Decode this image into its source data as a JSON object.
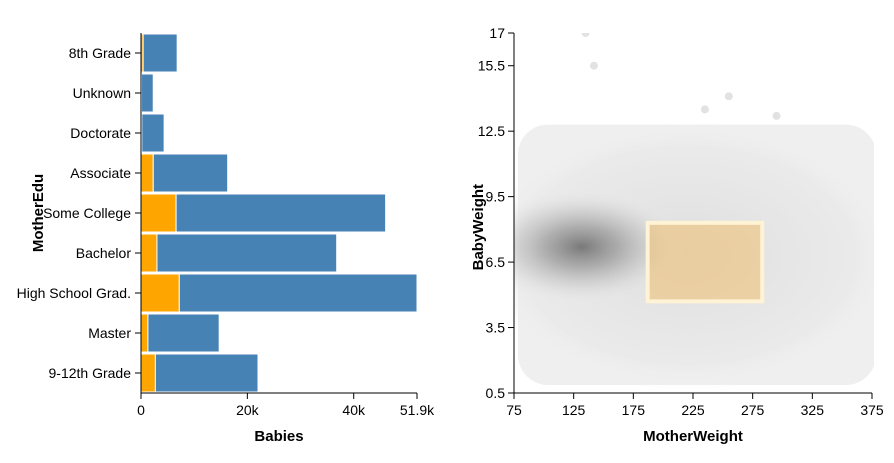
{
  "chart_data": [
    {
      "type": "bar",
      "orientation": "horizontal",
      "stacked": true,
      "xlabel": "Babies",
      "ylabel": "MotherEdu",
      "xlim": [
        0,
        51900
      ],
      "xticks": [
        {
          "value": 0,
          "label": "0"
        },
        {
          "value": 20000,
          "label": "20k"
        },
        {
          "value": 40000,
          "label": "40k"
        },
        {
          "value": 51900,
          "label": "51.9k"
        }
      ],
      "categories": [
        "8th Grade",
        "Unknown",
        "Doctorate",
        "Associate",
        "Some College",
        "Bachelor",
        "High School Grad.",
        "Master",
        "9-12th Grade"
      ],
      "series": [
        {
          "color": "#ffa500",
          "values": [
            400,
            100,
            150,
            2300,
            6600,
            3000,
            7200,
            1300,
            2700
          ]
        },
        {
          "color": "#4682b4",
          "values": [
            6400,
            2200,
            4200,
            14000,
            39400,
            33800,
            44700,
            13400,
            19300
          ]
        }
      ],
      "grid": false
    },
    {
      "type": "heatmap",
      "subtype": "hexbin density with brush selection",
      "xlabel": "MotherWeight",
      "ylabel": "BabyWeight",
      "xlim": [
        75,
        375
      ],
      "ylim": [
        0.5,
        17
      ],
      "xticks": [
        "75",
        "125",
        "175",
        "225",
        "275",
        "325",
        "375"
      ],
      "yticks": [
        "0.5",
        "3.5",
        "6.5",
        "9.5",
        "12.5",
        "15.5",
        "17"
      ],
      "density_color": "#808080",
      "density_peak": {
        "x": 125,
        "y": 7.2
      },
      "selection": {
        "x": [
          187,
          283
        ],
        "y": [
          4.7,
          8.3
        ],
        "fill": "#f0c070"
      },
      "outliers": [
        {
          "x": 135,
          "y": 17
        },
        {
          "x": 142,
          "y": 15.5
        },
        {
          "x": 295,
          "y": 13.2
        },
        {
          "x": 255,
          "y": 14.1
        },
        {
          "x": 235,
          "y": 13.5
        }
      ],
      "grid": false
    }
  ]
}
